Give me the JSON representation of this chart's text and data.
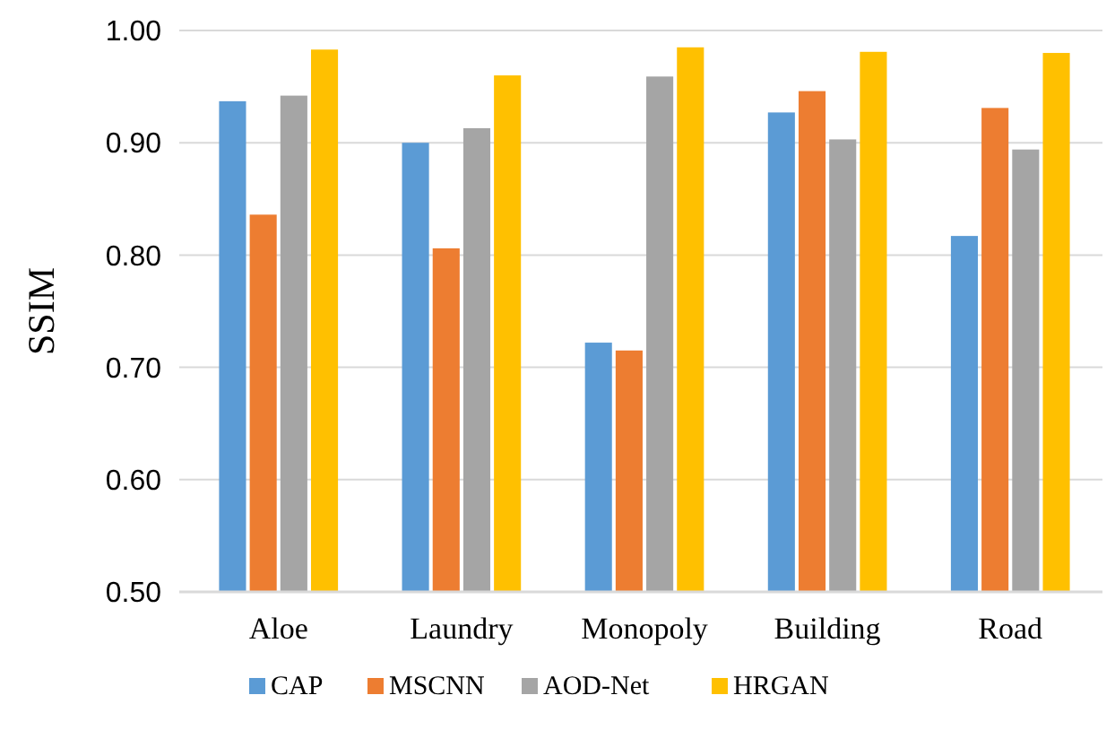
{
  "chart_data": {
    "type": "bar",
    "ylabel": "SSIM",
    "categories": [
      "Aloe",
      "Laundry",
      "Monopoly",
      "Building",
      "Road"
    ],
    "series": [
      {
        "name": "CAP",
        "color": "#5b9bd5",
        "values": [
          0.937,
          0.9,
          0.722,
          0.927,
          0.817
        ]
      },
      {
        "name": "MSCNN",
        "color": "#ed7d31",
        "values": [
          0.836,
          0.806,
          0.715,
          0.946,
          0.931
        ]
      },
      {
        "name": "AOD-Net",
        "color": "#a5a5a5",
        "values": [
          0.942,
          0.913,
          0.959,
          0.903,
          0.894
        ]
      },
      {
        "name": "HRGAN",
        "color": "#ffc000",
        "values": [
          0.983,
          0.96,
          0.985,
          0.981,
          0.98
        ]
      }
    ],
    "ylim": [
      0.5,
      1.0
    ],
    "yticks": [
      {
        "value": 0.5,
        "label": "0.50"
      },
      {
        "value": 0.6,
        "label": "0.60"
      },
      {
        "value": 0.7,
        "label": "0.70"
      },
      {
        "value": 0.8,
        "label": "0.80"
      },
      {
        "value": 0.9,
        "label": "0.90"
      },
      {
        "value": 1.0,
        "label": "1.00"
      }
    ],
    "grid": "y",
    "legend": "bottom"
  }
}
